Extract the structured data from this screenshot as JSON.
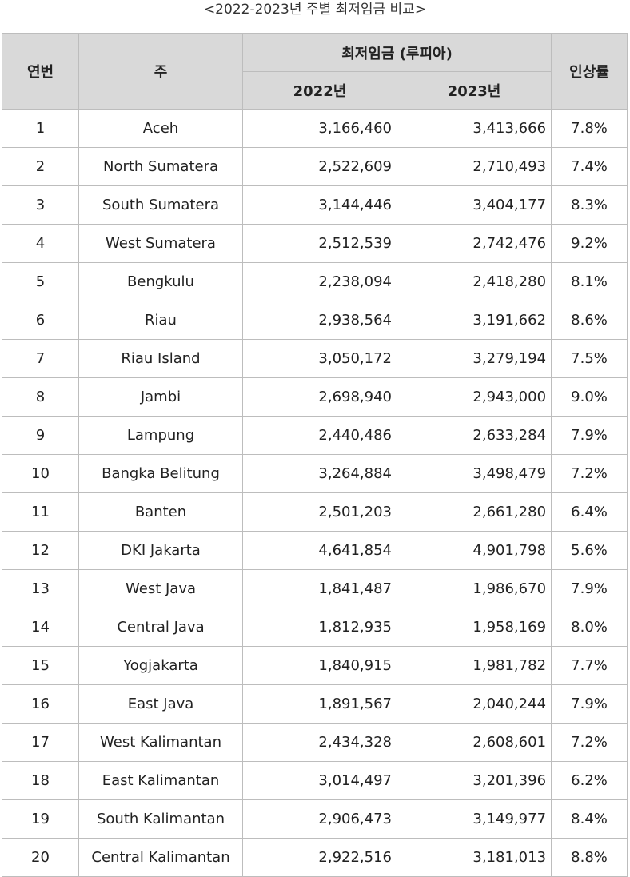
{
  "caption": "<2022-2023년 주별 최저임금 비교>",
  "headers": {
    "no": "연번",
    "province": "주",
    "min_wage": "최저임금 (루피아)",
    "y2022": "2022년",
    "y2023": "2023년",
    "rate": "인상률"
  },
  "rows": [
    {
      "no": "1",
      "province": "Aceh",
      "w2022": "3,166,460",
      "w2023": "3,413,666",
      "rate": "7.8%"
    },
    {
      "no": "2",
      "province": "North Sumatera",
      "w2022": "2,522,609",
      "w2023": "2,710,493",
      "rate": "7.4%"
    },
    {
      "no": "3",
      "province": "South Sumatera",
      "w2022": "3,144,446",
      "w2023": "3,404,177",
      "rate": "8.3%"
    },
    {
      "no": "4",
      "province": "West Sumatera",
      "w2022": "2,512,539",
      "w2023": "2,742,476",
      "rate": "9.2%"
    },
    {
      "no": "5",
      "province": "Bengkulu",
      "w2022": "2,238,094",
      "w2023": "2,418,280",
      "rate": "8.1%"
    },
    {
      "no": "6",
      "province": "Riau",
      "w2022": "2,938,564",
      "w2023": "3,191,662",
      "rate": "8.6%"
    },
    {
      "no": "7",
      "province": "Riau Island",
      "w2022": "3,050,172",
      "w2023": "3,279,194",
      "rate": "7.5%"
    },
    {
      "no": "8",
      "province": "Jambi",
      "w2022": "2,698,940",
      "w2023": "2,943,000",
      "rate": "9.0%"
    },
    {
      "no": "9",
      "province": "Lampung",
      "w2022": "2,440,486",
      "w2023": "2,633,284",
      "rate": "7.9%"
    },
    {
      "no": "10",
      "province": "Bangka Belitung",
      "w2022": "3,264,884",
      "w2023": "3,498,479",
      "rate": "7.2%"
    },
    {
      "no": "11",
      "province": "Banten",
      "w2022": "2,501,203",
      "w2023": "2,661,280",
      "rate": "6.4%"
    },
    {
      "no": "12",
      "province": "DKI Jakarta",
      "w2022": "4,641,854",
      "w2023": "4,901,798",
      "rate": "5.6%"
    },
    {
      "no": "13",
      "province": "West Java",
      "w2022": "1,841,487",
      "w2023": "1,986,670",
      "rate": "7.9%"
    },
    {
      "no": "14",
      "province": "Central Java",
      "w2022": "1,812,935",
      "w2023": "1,958,169",
      "rate": "8.0%"
    },
    {
      "no": "15",
      "province": "Yogjakarta",
      "w2022": "1,840,915",
      "w2023": "1,981,782",
      "rate": "7.7%"
    },
    {
      "no": "16",
      "province": "East Java",
      "w2022": "1,891,567",
      "w2023": "2,040,244",
      "rate": "7.9%"
    },
    {
      "no": "17",
      "province": "West Kalimantan",
      "w2022": "2,434,328",
      "w2023": "2,608,601",
      "rate": "7.2%"
    },
    {
      "no": "18",
      "province": "East Kalimantan",
      "w2022": "3,014,497",
      "w2023": "3,201,396",
      "rate": "6.2%"
    },
    {
      "no": "19",
      "province": "South Kalimantan",
      "w2022": "2,906,473",
      "w2023": "3,149,977",
      "rate": "8.4%"
    },
    {
      "no": "20",
      "province": "Central Kalimantan",
      "w2022": "2,922,516",
      "w2023": "3,181,013",
      "rate": "8.8%"
    }
  ],
  "colors": {
    "header_bg": "#d9d9d9",
    "border": "#bdbdbd",
    "text": "#222222"
  }
}
